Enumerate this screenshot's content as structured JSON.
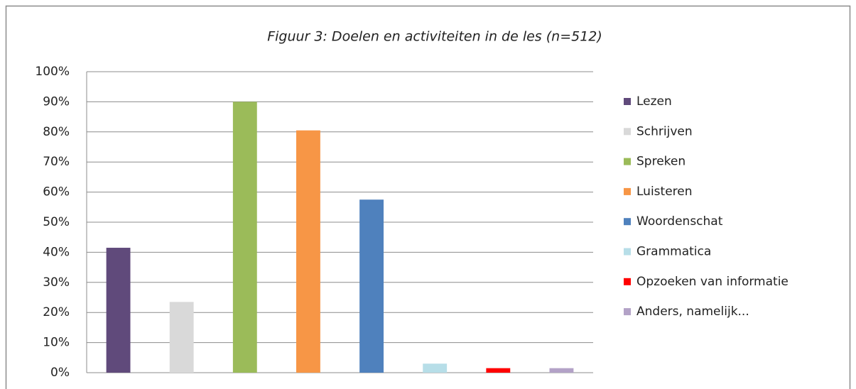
{
  "chart_data": {
    "type": "bar",
    "title": "Figuur 3: Doelen en activiteiten in de les (n=512)",
    "categories": [
      null
    ],
    "series": [
      {
        "name": "Lezen",
        "color": "#604a7b",
        "values": [
          41.5
        ]
      },
      {
        "name": "Schrijven",
        "color": "#d9d9d9",
        "values": [
          23.5
        ]
      },
      {
        "name": "Spreken",
        "color": "#9bbb59",
        "values": [
          90
        ]
      },
      {
        "name": "Luisteren",
        "color": "#f79646",
        "values": [
          80.5
        ]
      },
      {
        "name": "Woordenschat",
        "color": "#4f81bd",
        "values": [
          57.5
        ]
      },
      {
        "name": "Grammatica",
        "color": "#b7dee8",
        "values": [
          3
        ]
      },
      {
        "name": "Opzoeken van informatie",
        "color": "#ff0000",
        "values": [
          1.5
        ]
      },
      {
        "name": "Anders, namelijk...",
        "color": "#b3a2c7",
        "values": [
          1.5
        ]
      }
    ],
    "ylim": [
      0,
      100
    ],
    "yticks": [
      {
        "value": 0,
        "label": "0%"
      },
      {
        "value": 10,
        "label": "10%"
      },
      {
        "value": 20,
        "label": "20%"
      },
      {
        "value": 30,
        "label": "30%"
      },
      {
        "value": 40,
        "label": "40%"
      },
      {
        "value": 50,
        "label": "50%"
      },
      {
        "value": 60,
        "label": "60%"
      },
      {
        "value": 70,
        "label": "70%"
      },
      {
        "value": 80,
        "label": "80%"
      },
      {
        "value": 90,
        "label": "90%"
      },
      {
        "value": 100,
        "label": "100%"
      }
    ],
    "grid": true,
    "legend": "right"
  }
}
